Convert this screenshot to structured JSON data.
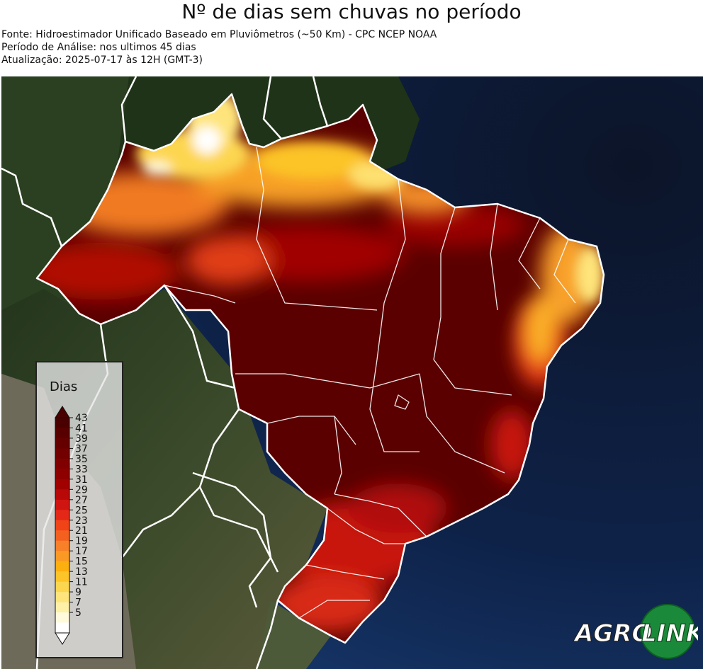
{
  "title": "Nº de dias sem chuvas no período",
  "source": "Fonte: Hidroestimador Unificado Baseado em Pluviômetros (~50 Km) - CPC NCEP NOAA",
  "period": "Período de Análise: nos ultimos 45 dias",
  "updated": "Atualização: 2025-07-17 às 12H (GMT-3)",
  "legend": {
    "title": "Dias",
    "ticks": [
      "43",
      "41",
      "39",
      "37",
      "35",
      "33",
      "31",
      "29",
      "27",
      "25",
      "23",
      "21",
      "19",
      "17",
      "15",
      "13",
      "11",
      "9",
      "7",
      "5"
    ],
    "colors": [
      "#4a0000",
      "#580000",
      "#650000",
      "#720000",
      "#800000",
      "#8e0000",
      "#a00000",
      "#b80808",
      "#d01410",
      "#e42818",
      "#f04418",
      "#f46020",
      "#f88028",
      "#fa9a24",
      "#fcb010",
      "#fcc428",
      "#fdd650",
      "#fee47a",
      "#fff0a8",
      "#fffadc",
      "#ffffff"
    ]
  },
  "logo": {
    "text_left": "AGRO",
    "text_right": "LINK"
  }
}
